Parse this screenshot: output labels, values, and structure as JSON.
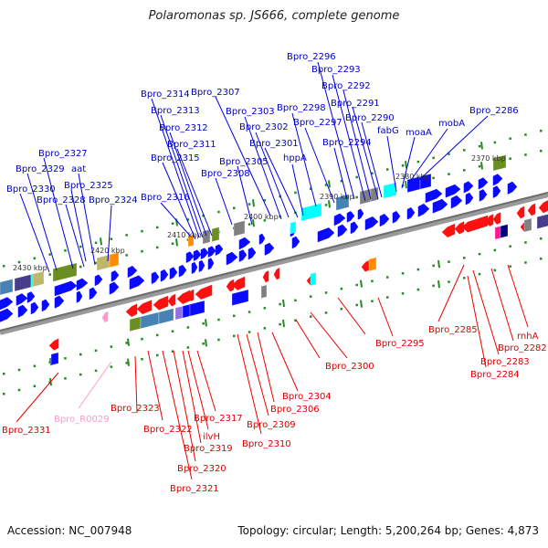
{
  "title": "Polaromonas sp. JS666, complete genome",
  "footer": {
    "accession": "Accession: NC_007948",
    "topology": "Topology: circular; Length: 5,200,264 bp; Genes: 4,873"
  },
  "colors": {
    "forward_gene": "#0000ff",
    "reverse_gene": "#ff0000",
    "rna_gene": "#ff99cc",
    "backbone": "#808080",
    "tick": "#008000"
  },
  "kbp_markers": [
    {
      "label": "2430 kbp"
    },
    {
      "label": "2420 kbp"
    },
    {
      "label": "2410 kbp"
    },
    {
      "label": "2400 kbp"
    },
    {
      "label": "2390 kbp"
    },
    {
      "label": "2380 kbp"
    },
    {
      "label": "2370 kbp"
    }
  ],
  "forward_labels": [
    {
      "name": "Bpro_2330"
    },
    {
      "name": "Bpro_2329"
    },
    {
      "name": "Bpro_2327"
    },
    {
      "name": "Bpro_2328"
    },
    {
      "name": "aat"
    },
    {
      "name": "Bpro_2325"
    },
    {
      "name": "Bpro_2324"
    },
    {
      "name": "Bpro_2316"
    },
    {
      "name": "Bpro_2315"
    },
    {
      "name": "Bpro_2314"
    },
    {
      "name": "Bpro_2313"
    },
    {
      "name": "Bpro_2312"
    },
    {
      "name": "Bpro_2311"
    },
    {
      "name": "Bpro_2307"
    },
    {
      "name": "Bpro_2308"
    },
    {
      "name": "Bpro_2305"
    },
    {
      "name": "Bpro_2303"
    },
    {
      "name": "Bpro_2302"
    },
    {
      "name": "Bpro_2301"
    },
    {
      "name": "hppA"
    },
    {
      "name": "Bpro_2298"
    },
    {
      "name": "Bpro_2297"
    },
    {
      "name": "Bpro_2296"
    },
    {
      "name": "Bpro_2293"
    },
    {
      "name": "Bpro_2294"
    },
    {
      "name": "Bpro_2292"
    },
    {
      "name": "Bpro_2291"
    },
    {
      "name": "Bpro_2290"
    },
    {
      "name": "fabG"
    },
    {
      "name": "moaA"
    },
    {
      "name": "mobA"
    },
    {
      "name": "Bpro_2286"
    }
  ],
  "reverse_labels": [
    {
      "name": "Bpro_2331"
    },
    {
      "name": "Bpro_R0029"
    },
    {
      "name": "Bpro_2323"
    },
    {
      "name": "Bpro_2322"
    },
    {
      "name": "Bpro_2321"
    },
    {
      "name": "Bpro_2320"
    },
    {
      "name": "Bpro_2319"
    },
    {
      "name": "ilvH"
    },
    {
      "name": "Bpro_2317"
    },
    {
      "name": "Bpro_2310"
    },
    {
      "name": "Bpro_2309"
    },
    {
      "name": "Bpro_2306"
    },
    {
      "name": "Bpro_2304"
    },
    {
      "name": "Bpro_2300"
    },
    {
      "name": "Bpro_2295"
    },
    {
      "name": "Bpro_2285"
    },
    {
      "name": "Bpro_2284"
    },
    {
      "name": "Bpro_2283"
    },
    {
      "name": "Bpro_2282"
    },
    {
      "name": "rnhA"
    }
  ]
}
